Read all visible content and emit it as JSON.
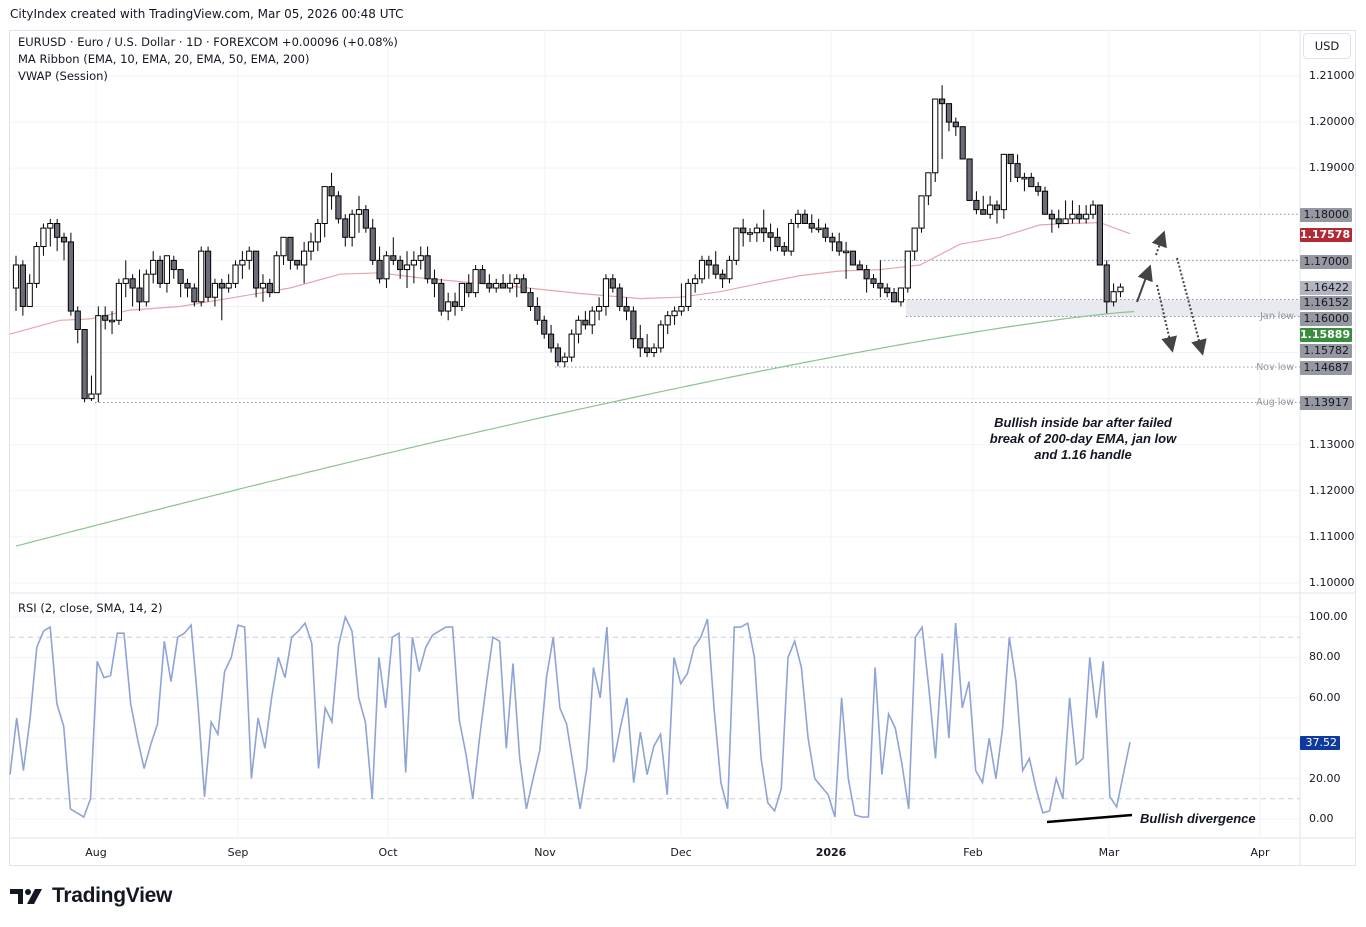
{
  "header": {
    "attribution": "CityIndex created with TradingView.com, Mar 05, 2026 00:48 UTC"
  },
  "legend": {
    "symbol_line": "EURUSD · Euro / U.S. Dollar · 1D · FOREXCOM  +0.00096 (+0.08%)",
    "ma_ribbon": "MA Ribbon (EMA, 10, EMA, 20, EMA, 50, EMA, 200)",
    "vwap": "VWAP (Session)",
    "rsi": "RSI (2, close, SMA, 14, 2)"
  },
  "currency_button": "USD",
  "price_axis": {
    "ticks": [
      "1.21000",
      "1.20000",
      "1.19000",
      "1.13000",
      "1.12000",
      "1.11000",
      "1.10000"
    ],
    "tags": [
      {
        "value": "1.18000",
        "bg": "#9598a1",
        "fg": "#131722"
      },
      {
        "value": "1.17578",
        "bg": "#b22833",
        "fg": "#ffffff"
      },
      {
        "value": "1.17000",
        "bg": "#9598a1",
        "fg": "#131722"
      },
      {
        "value": "1.16422",
        "bg": "#b2b5be",
        "fg": "#131722"
      },
      {
        "value": "1.16152",
        "bg": "#9598a1",
        "fg": "#131722"
      },
      {
        "value": "1.16000",
        "bg": "#9598a1",
        "fg": "#131722"
      },
      {
        "value": "1.15889",
        "bg": "#388e3c",
        "fg": "#ffffff"
      },
      {
        "value": "1.15782",
        "bg": "#9598a1",
        "fg": "#131722"
      },
      {
        "value": "1.14687",
        "bg": "#9598a1",
        "fg": "#131722"
      },
      {
        "value": "1.13917",
        "bg": "#9598a1",
        "fg": "#131722"
      }
    ]
  },
  "levels": {
    "jan_low": "Jan low",
    "nov_low": "Nov low",
    "aug_low": "Aug low"
  },
  "rsi_axis": {
    "ticks": [
      "100.00",
      "80.00",
      "60.00",
      "20.00",
      "0.00"
    ],
    "current": "37.52",
    "current_bg": "#0d3a9e"
  },
  "time_axis": [
    "Aug",
    "Sep",
    "Oct",
    "Nov",
    "Dec",
    "2026",
    "Feb",
    "Mar",
    "Apr"
  ],
  "annotations": {
    "main_note": "Bullish inside bar after failed break of 200-day EMA, jan low and 1.16 handle",
    "rsi_note": "Bullish divergence"
  },
  "logo": "TradingView",
  "chart_data": {
    "type": "candlestick",
    "title": "EURUSD · Euro / U.S. Dollar · 1D · FOREXCOM",
    "change": "+0.00096 (+0.08%)",
    "xlabel": "",
    "ylabel": "USD",
    "ylim": [
      1.1,
      1.21
    ],
    "x_ticks": [
      "Aug",
      "Sep",
      "Oct",
      "Nov",
      "Dec",
      "2026",
      "Feb",
      "Mar",
      "Apr"
    ],
    "y_ticks": [
      1.1,
      1.11,
      1.12,
      1.13,
      1.19,
      1.2,
      1.21
    ],
    "price_levels": {
      "resistance_1.18": 1.18,
      "ema_50": 1.17578,
      "resistance_1.17": 1.17,
      "last_close": 1.16422,
      "vwap": 1.16152,
      "handle_1.16": 1.16,
      "ema_200": 1.15889,
      "jan_low": 1.15782,
      "nov_low": 1.14687,
      "aug_low": 1.13917
    },
    "candles_ohlc": [
      [
        1.164,
        1.171,
        1.159,
        1.169
      ],
      [
        1.169,
        1.17,
        1.158,
        1.16
      ],
      [
        1.16,
        1.167,
        1.16,
        1.165
      ],
      [
        1.165,
        1.174,
        1.164,
        1.173
      ],
      [
        1.173,
        1.178,
        1.171,
        1.177
      ],
      [
        1.177,
        1.179,
        1.173,
        1.178
      ],
      [
        1.178,
        1.179,
        1.172,
        1.175
      ],
      [
        1.175,
        1.176,
        1.17,
        1.174
      ],
      [
        1.174,
        1.176,
        1.158,
        1.159
      ],
      [
        1.159,
        1.16,
        1.152,
        1.155
      ],
      [
        1.155,
        1.155,
        1.1392,
        1.14
      ],
      [
        1.14,
        1.145,
        1.1395,
        1.141
      ],
      [
        1.141,
        1.16,
        1.1392,
        1.158
      ],
      [
        1.158,
        1.16,
        1.155,
        1.157
      ],
      [
        1.157,
        1.159,
        1.154,
        1.157
      ],
      [
        1.157,
        1.166,
        1.156,
        1.165
      ],
      [
        1.165,
        1.17,
        1.162,
        1.166
      ],
      [
        1.166,
        1.167,
        1.16,
        1.164
      ],
      [
        1.164,
        1.168,
        1.159,
        1.161
      ],
      [
        1.161,
        1.168,
        1.16,
        1.167
      ],
      [
        1.167,
        1.172,
        1.165,
        1.17
      ],
      [
        1.17,
        1.171,
        1.164,
        1.165
      ],
      [
        1.165,
        1.171,
        1.163,
        1.171
      ],
      [
        1.17,
        1.171,
        1.166,
        1.168
      ],
      [
        1.168,
        1.167,
        1.162,
        1.165
      ],
      [
        1.165,
        1.166,
        1.162,
        1.164
      ],
      [
        1.164,
        1.165,
        1.16,
        1.161
      ],
      [
        1.161,
        1.173,
        1.16,
        1.172
      ],
      [
        1.172,
        1.173,
        1.161,
        1.162
      ],
      [
        1.162,
        1.166,
        1.16,
        1.165
      ],
      [
        1.165,
        1.166,
        1.157,
        1.164
      ],
      [
        1.164,
        1.167,
        1.163,
        1.165
      ],
      [
        1.165,
        1.17,
        1.164,
        1.169
      ],
      [
        1.169,
        1.172,
        1.166,
        1.17
      ],
      [
        1.17,
        1.173,
        1.168,
        1.172
      ],
      [
        1.172,
        1.172,
        1.162,
        1.164
      ],
      [
        1.164,
        1.167,
        1.161,
        1.165
      ],
      [
        1.165,
        1.166,
        1.162,
        1.163
      ],
      [
        1.163,
        1.172,
        1.163,
        1.171
      ],
      [
        1.171,
        1.173,
        1.169,
        1.175
      ],
      [
        1.175,
        1.175,
        1.168,
        1.17
      ],
      [
        1.17,
        1.17,
        1.168,
        1.169
      ],
      [
        1.169,
        1.174,
        1.165,
        1.172
      ],
      [
        1.172,
        1.176,
        1.17,
        1.174
      ],
      [
        1.174,
        1.179,
        1.172,
        1.178
      ],
      [
        1.178,
        1.182,
        1.175,
        1.186
      ],
      [
        1.186,
        1.189,
        1.181,
        1.184
      ],
      [
        1.184,
        1.185,
        1.178,
        1.179
      ],
      [
        1.179,
        1.18,
        1.173,
        1.175
      ],
      [
        1.175,
        1.181,
        1.173,
        1.18
      ],
      [
        1.18,
        1.184,
        1.176,
        1.181
      ],
      [
        1.181,
        1.182,
        1.176,
        1.177
      ],
      [
        1.177,
        1.179,
        1.169,
        1.17
      ],
      [
        1.17,
        1.173,
        1.165,
        1.166
      ],
      [
        1.166,
        1.172,
        1.164,
        1.171
      ],
      [
        1.171,
        1.175,
        1.169,
        1.17
      ],
      [
        1.17,
        1.171,
        1.166,
        1.168
      ],
      [
        1.168,
        1.172,
        1.164,
        1.169
      ],
      [
        1.169,
        1.172,
        1.165,
        1.17
      ],
      [
        1.17,
        1.173,
        1.168,
        1.171
      ],
      [
        1.171,
        1.173,
        1.165,
        1.166
      ],
      [
        1.166,
        1.168,
        1.162,
        1.165
      ],
      [
        1.165,
        1.166,
        1.158,
        1.159
      ],
      [
        1.159,
        1.163,
        1.157,
        1.161
      ],
      [
        1.161,
        1.163,
        1.158,
        1.16
      ],
      [
        1.16,
        1.165,
        1.159,
        1.165
      ],
      [
        1.165,
        1.167,
        1.162,
        1.163
      ],
      [
        1.163,
        1.169,
        1.162,
        1.168
      ],
      [
        1.168,
        1.169,
        1.165,
        1.165
      ],
      [
        1.165,
        1.167,
        1.163,
        1.164
      ],
      [
        1.164,
        1.166,
        1.163,
        1.165
      ],
      [
        1.165,
        1.167,
        1.164,
        1.164
      ],
      [
        1.164,
        1.167,
        1.163,
        1.165
      ],
      [
        1.165,
        1.167,
        1.162,
        1.166
      ],
      [
        1.166,
        1.167,
        1.163,
        1.163
      ],
      [
        1.163,
        1.164,
        1.159,
        1.16
      ],
      [
        1.16,
        1.162,
        1.156,
        1.157
      ],
      [
        1.157,
        1.158,
        1.153,
        1.154
      ],
      [
        1.154,
        1.156,
        1.15,
        1.151
      ],
      [
        1.151,
        1.152,
        1.147,
        1.148
      ],
      [
        1.148,
        1.15,
        1.1468,
        1.149
      ],
      [
        1.149,
        1.155,
        1.148,
        1.154
      ],
      [
        1.154,
        1.158,
        1.152,
        1.157
      ],
      [
        1.157,
        1.159,
        1.155,
        1.156
      ],
      [
        1.156,
        1.16,
        1.154,
        1.159
      ],
      [
        1.159,
        1.162,
        1.157,
        1.16
      ],
      [
        1.16,
        1.167,
        1.158,
        1.166
      ],
      [
        1.166,
        1.167,
        1.163,
        1.164
      ],
      [
        1.164,
        1.165,
        1.159,
        1.16
      ],
      [
        1.16,
        1.162,
        1.157,
        1.159
      ],
      [
        1.159,
        1.16,
        1.151,
        1.153
      ],
      [
        1.153,
        1.156,
        1.149,
        1.151
      ],
      [
        1.151,
        1.154,
        1.149,
        1.15
      ],
      [
        1.15,
        1.152,
        1.149,
        1.151
      ],
      [
        1.151,
        1.157,
        1.15,
        1.156
      ],
      [
        1.156,
        1.159,
        1.154,
        1.158
      ],
      [
        1.158,
        1.16,
        1.156,
        1.159
      ],
      [
        1.159,
        1.165,
        1.158,
        1.16
      ],
      [
        1.16,
        1.166,
        1.159,
        1.165
      ],
      [
        1.165,
        1.167,
        1.163,
        1.166
      ],
      [
        1.166,
        1.171,
        1.165,
        1.17
      ],
      [
        1.17,
        1.171,
        1.166,
        1.169
      ],
      [
        1.169,
        1.172,
        1.166,
        1.167
      ],
      [
        1.167,
        1.168,
        1.164,
        1.166
      ],
      [
        1.166,
        1.171,
        1.165,
        1.17
      ],
      [
        1.17,
        1.175,
        1.169,
        1.177
      ],
      [
        1.177,
        1.179,
        1.173,
        1.176
      ],
      [
        1.176,
        1.177,
        1.174,
        1.176
      ],
      [
        1.176,
        1.178,
        1.174,
        1.177
      ],
      [
        1.177,
        1.181,
        1.174,
        1.176
      ],
      [
        1.176,
        1.178,
        1.172,
        1.175
      ],
      [
        1.175,
        1.177,
        1.172,
        1.173
      ],
      [
        1.173,
        1.174,
        1.171,
        1.172
      ],
      [
        1.172,
        1.179,
        1.171,
        1.178
      ],
      [
        1.178,
        1.181,
        1.177,
        1.18
      ],
      [
        1.18,
        1.181,
        1.178,
        1.178
      ],
      [
        1.178,
        1.18,
        1.176,
        1.177
      ],
      [
        1.177,
        1.179,
        1.176,
        1.177
      ],
      [
        1.177,
        1.178,
        1.174,
        1.175
      ],
      [
        1.175,
        1.176,
        1.172,
        1.174
      ],
      [
        1.174,
        1.176,
        1.171,
        1.172
      ],
      [
        1.172,
        1.174,
        1.166,
        1.172
      ],
      [
        1.172,
        1.172,
        1.169,
        1.169
      ],
      [
        1.169,
        1.17,
        1.168,
        1.168
      ],
      [
        1.168,
        1.169,
        1.163,
        1.166
      ],
      [
        1.166,
        1.167,
        1.164,
        1.165
      ],
      [
        1.165,
        1.17,
        1.162,
        1.164
      ],
      [
        1.164,
        1.165,
        1.162,
        1.163
      ],
      [
        1.163,
        1.164,
        1.161,
        1.161
      ],
      [
        1.161,
        1.164,
        1.16,
        1.164
      ],
      [
        1.164,
        1.172,
        1.163,
        1.172
      ],
      [
        1.172,
        1.176,
        1.17,
        1.177
      ],
      [
        1.177,
        1.183,
        1.176,
        1.184
      ],
      [
        1.184,
        1.188,
        1.182,
        1.189
      ],
      [
        1.189,
        1.201,
        1.187,
        1.205
      ],
      [
        1.205,
        1.208,
        1.192,
        1.204
      ],
      [
        1.204,
        1.204,
        1.198,
        1.2
      ],
      [
        1.2,
        1.201,
        1.197,
        1.199
      ],
      [
        1.199,
        1.199,
        1.193,
        1.192
      ],
      [
        1.192,
        1.19,
        1.183,
        1.183
      ],
      [
        1.183,
        1.185,
        1.18,
        1.181
      ],
      [
        1.181,
        1.184,
        1.18,
        1.18
      ],
      [
        1.18,
        1.184,
        1.179,
        1.182
      ],
      [
        1.182,
        1.183,
        1.178,
        1.181
      ],
      [
        1.181,
        1.193,
        1.179,
        1.193
      ],
      [
        1.193,
        1.193,
        1.187,
        1.191
      ],
      [
        1.191,
        1.193,
        1.187,
        1.188
      ],
      [
        1.188,
        1.189,
        1.185,
        1.188
      ],
      [
        1.188,
        1.189,
        1.186,
        1.186
      ],
      [
        1.186,
        1.187,
        1.184,
        1.185
      ],
      [
        1.185,
        1.186,
        1.18,
        1.18
      ],
      [
        1.18,
        1.181,
        1.176,
        1.179
      ],
      [
        1.179,
        1.181,
        1.177,
        1.178
      ],
      [
        1.178,
        1.183,
        1.179,
        1.179
      ],
      [
        1.179,
        1.183,
        1.178,
        1.18
      ],
      [
        1.18,
        1.182,
        1.178,
        1.179
      ],
      [
        1.179,
        1.182,
        1.178,
        1.18
      ],
      [
        1.18,
        1.183,
        1.179,
        1.182
      ],
      [
        1.182,
        1.182,
        1.169,
        1.169
      ],
      [
        1.169,
        1.17,
        1.1585,
        1.161
      ],
      [
        1.161,
        1.165,
        1.16,
        1.1632
      ],
      [
        1.1632,
        1.165,
        1.162,
        1.1642
      ]
    ],
    "ema_50": "descending from ~1.1540 (Jul) rising to ~1.1780 (Feb), last 1.17578",
    "ema_200": "rising from ~1.1080 (Jul) to 1.15889 (Mar)",
    "rsi": {
      "title": "RSI (2, close, SMA, 14, 2)",
      "ylim": [
        0,
        100
      ],
      "bands": [
        10,
        90
      ],
      "last": 37.52,
      "values": [
        22,
        50,
        24,
        50,
        85,
        93,
        95,
        57,
        46,
        5,
        3,
        1,
        10,
        78,
        70,
        71,
        92,
        92,
        57,
        40,
        25,
        37,
        47,
        88,
        68,
        90,
        92,
        96,
        58,
        11,
        48,
        42,
        73,
        80,
        96,
        95,
        20,
        50,
        35,
        60,
        80,
        70,
        90,
        93,
        97,
        87,
        25,
        55,
        48,
        86,
        100,
        93,
        60,
        48,
        10,
        80,
        55,
        90,
        92,
        23,
        90,
        73,
        85,
        91,
        93,
        95,
        95,
        49,
        32,
        10,
        40,
        66,
        90,
        88,
        35,
        77,
        30,
        5,
        20,
        34,
        70,
        90,
        55,
        47,
        26,
        5,
        25,
        75,
        60,
        95,
        28,
        45,
        60,
        18,
        43,
        22,
        36,
        42,
        12,
        80,
        67,
        72,
        85,
        90,
        99,
        54,
        18,
        5,
        95,
        95,
        97,
        80,
        30,
        8,
        4,
        15,
        80,
        88,
        75,
        40,
        20,
        16,
        12,
        1,
        60,
        20,
        2,
        1,
        1,
        75,
        22,
        52,
        45,
        27,
        5,
        90,
        95,
        65,
        30,
        82,
        40,
        97,
        55,
        68,
        24,
        18,
        40,
        20,
        45,
        90,
        68,
        24,
        30,
        15,
        3,
        4,
        20,
        10,
        60,
        27,
        30,
        80,
        50,
        78,
        11,
        6,
        22,
        38
      ]
    }
  }
}
